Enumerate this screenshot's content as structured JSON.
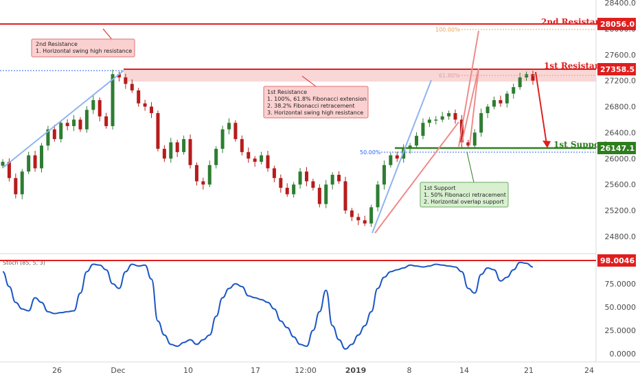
{
  "chart_data": [
    {
      "type": "candlestick",
      "price_axis": {
        "ticks": [
          "28400.0",
          "28000.0",
          "27600.0",
          "27200.0",
          "26800.0",
          "26400.0",
          "26000.0",
          "25600.0",
          "25200.0",
          "24800.0"
        ],
        "range": [
          24560,
          28440
        ]
      },
      "time_axis": {
        "ticks": [
          "26",
          "Dec",
          "10",
          "17",
          "12:00",
          "2019",
          "8",
          "14",
          "21",
          "24"
        ]
      },
      "levels": {
        "second_resistance": {
          "label": "2nd Resistance",
          "value": 28056.0,
          "tag": "28056.0",
          "color": "#e01e1e"
        },
        "first_resistance": {
          "label": "1st Resistance",
          "value": 27358.5,
          "tag": "27358.5",
          "color": "#e01e1e"
        },
        "first_support": {
          "label": "1st Support",
          "value": 26147.1,
          "tag": "26147.1",
          "color": "#2e7d1e"
        }
      },
      "fibonacci_labels": [
        "100.00%",
        "61.80%",
        "50.00%"
      ],
      "annotations": {
        "second_resistance_box": [
          "2nd Resistance",
          "1. Horizontal swing high resistance"
        ],
        "first_resistance_box": [
          "1st Resistance",
          "1. 100%, 61.8% Fibonacci extension",
          "2. 38.2% Fibonacci retracement",
          "3. Horizontal swing high resistance"
        ],
        "first_support_box": [
          "1st Support",
          "1. 50% Fibonacci retracement",
          "2. Horizontal overlap support"
        ]
      },
      "ohlc_shape": {
        "closes": [
          25950,
          25700,
          25450,
          25800,
          26050,
          25850,
          26200,
          26450,
          26300,
          26550,
          26500,
          26600,
          26450,
          26750,
          26900,
          26650,
          26500,
          27300,
          27250,
          27150,
          27050,
          26850,
          26800,
          26700,
          26150,
          26000,
          26250,
          26100,
          26300,
          25900,
          25650,
          25600,
          25900,
          26150,
          26450,
          26550,
          26300,
          26100,
          26000,
          25950,
          26050,
          25850,
          25700,
          25550,
          25450,
          25600,
          25800,
          25650,
          25550,
          25300,
          25600,
          25750,
          25650,
          25200,
          25100,
          25050,
          25000,
          25250,
          25600,
          25900,
          26050,
          26000,
          26150,
          26200,
          26350,
          26550,
          26600,
          26600,
          26650,
          26700,
          26600,
          26250,
          26200,
          26400,
          26700,
          26800,
          26900,
          26850,
          27000,
          27100,
          27250,
          27300,
          27200
        ]
      },
      "colors": {
        "bull": "#2e7d32",
        "bear": "#b71c1c"
      }
    },
    {
      "type": "line",
      "indicator": "Stoch (85, 5, 3)",
      "ticks": [
        "98.0046",
        "75.0000",
        "50.0000",
        "25.0000",
        "0.0000"
      ],
      "current": {
        "value": 98.0046,
        "tag": "98.0046"
      },
      "range": [
        0,
        100
      ],
      "series": [
        {
          "color": "#1a56c4",
          "values": [
            88,
            72,
            55,
            48,
            46,
            60,
            55,
            45,
            43,
            44,
            45,
            46,
            65,
            88,
            96,
            95,
            90,
            75,
            70,
            88,
            96,
            94,
            95,
            80,
            35,
            20,
            10,
            8,
            12,
            15,
            10,
            15,
            20,
            40,
            60,
            70,
            75,
            72,
            62,
            60,
            58,
            55,
            48,
            35,
            28,
            18,
            10,
            8,
            25,
            45,
            68,
            30,
            15,
            5,
            10,
            20,
            30,
            45,
            70,
            82,
            88,
            90,
            92,
            95,
            94,
            93,
            94,
            96,
            95,
            94,
            93,
            88,
            70,
            65,
            85,
            92,
            90,
            78,
            82,
            90,
            98,
            97,
            93
          ]
        }
      ]
    }
  ]
}
